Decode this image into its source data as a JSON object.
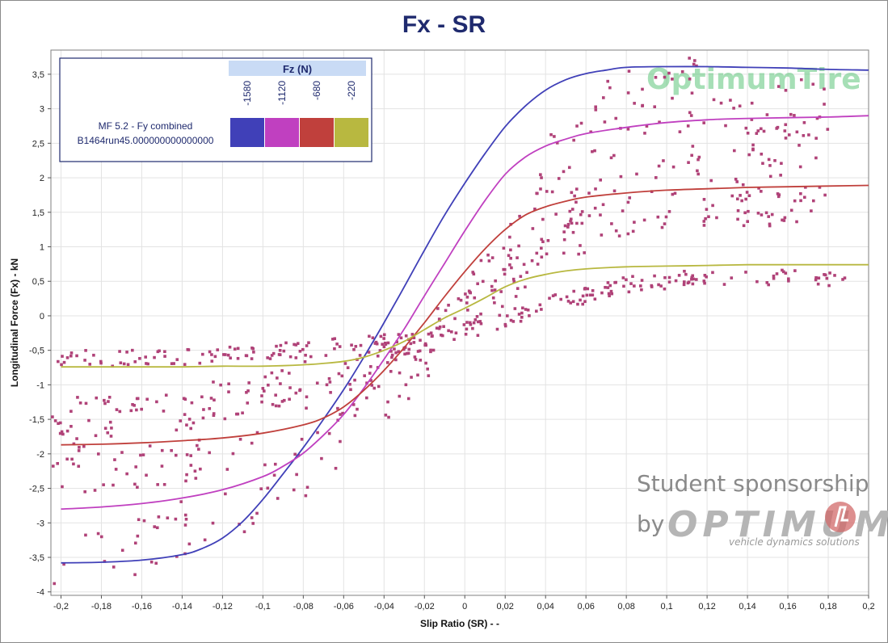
{
  "chart_data": {
    "type": "line",
    "title": "Fx - SR",
    "xlabel": "Slip Ratio (SR) - -",
    "ylabel": "Longitudinal Force (Fx) - kN",
    "xlim": [
      -0.205,
      0.2
    ],
    "ylim": [
      -4.05,
      3.85
    ],
    "x_ticks": [
      -0.2,
      -0.18,
      -0.16,
      -0.14,
      -0.12,
      -0.1,
      -0.08,
      -0.06,
      -0.04,
      -0.02,
      0,
      0.02,
      0.04,
      0.06,
      0.08,
      0.1,
      0.12,
      0.14,
      0.16,
      0.18,
      0.2
    ],
    "x_tick_labels": [
      "-0,2",
      "-0,18",
      "-0,16",
      "-0,14",
      "-0,12",
      "-0,1",
      "-0,08",
      "-0,06",
      "-0,04",
      "-0,02",
      "0",
      "0,02",
      "0,04",
      "0,06",
      "0,08",
      "0,1",
      "0,12",
      "0,14",
      "0,16",
      "0,18",
      "0,2"
    ],
    "y_ticks": [
      -4,
      -3.5,
      -3,
      -2.5,
      -2,
      -1.5,
      -1,
      -0.5,
      0,
      0.5,
      1,
      1.5,
      2,
      2.5,
      3,
      3.5
    ],
    "y_tick_labels": [
      "-4",
      "-3,5",
      "-3",
      "-2,5",
      "-2",
      "-1,5",
      "-1",
      "-0,5",
      "0",
      "0,5",
      "1",
      "1,5",
      "2",
      "2,5",
      "3",
      "3,5"
    ],
    "grid": true,
    "legend": {
      "placement": "top-left",
      "header": "Fz (N)",
      "row_label_1": "MF 5.2 - Fy combined",
      "row_label_2": "B1464run45.000000000000000"
    },
    "series": [
      {
        "name": "-1580",
        "color": "#4040b8",
        "x": [
          -0.2,
          -0.18,
          -0.16,
          -0.14,
          -0.13,
          -0.12,
          -0.11,
          -0.1,
          -0.09,
          -0.08,
          -0.07,
          -0.06,
          -0.05,
          -0.04,
          -0.03,
          -0.02,
          -0.01,
          0,
          0.01,
          0.02,
          0.03,
          0.04,
          0.05,
          0.06,
          0.07,
          0.08,
          0.1,
          0.12,
          0.14,
          0.16,
          0.18,
          0.2
        ],
        "y": [
          -3.58,
          -3.57,
          -3.54,
          -3.46,
          -3.37,
          -3.22,
          -2.98,
          -2.66,
          -2.29,
          -1.91,
          -1.5,
          -1.07,
          -0.6,
          -0.1,
          0.42,
          0.95,
          1.46,
          1.92,
          2.35,
          2.74,
          3.04,
          3.27,
          3.42,
          3.51,
          3.56,
          3.6,
          3.61,
          3.61,
          3.6,
          3.59,
          3.57,
          3.56
        ]
      },
      {
        "name": "-1120",
        "color": "#c040c0",
        "x": [
          -0.2,
          -0.18,
          -0.16,
          -0.14,
          -0.12,
          -0.1,
          -0.09,
          -0.08,
          -0.07,
          -0.06,
          -0.05,
          -0.04,
          -0.03,
          -0.02,
          -0.01,
          0,
          0.01,
          0.02,
          0.03,
          0.04,
          0.05,
          0.06,
          0.08,
          0.1,
          0.12,
          0.14,
          0.16,
          0.18,
          0.2
        ],
        "y": [
          -2.8,
          -2.77,
          -2.72,
          -2.64,
          -2.52,
          -2.33,
          -2.18,
          -1.99,
          -1.73,
          -1.43,
          -1.05,
          -0.63,
          -0.19,
          0.29,
          0.76,
          1.23,
          1.67,
          2.05,
          2.3,
          2.46,
          2.56,
          2.64,
          2.73,
          2.8,
          2.84,
          2.86,
          2.87,
          2.88,
          2.9
        ]
      },
      {
        "name": "-680",
        "color": "#c0403c",
        "x": [
          -0.2,
          -0.18,
          -0.16,
          -0.14,
          -0.12,
          -0.1,
          -0.08,
          -0.07,
          -0.06,
          -0.05,
          -0.04,
          -0.03,
          -0.02,
          -0.01,
          0,
          0.01,
          0.02,
          0.03,
          0.04,
          0.05,
          0.06,
          0.08,
          0.1,
          0.12,
          0.14,
          0.16,
          0.18,
          0.2
        ],
        "y": [
          -1.87,
          -1.86,
          -1.84,
          -1.81,
          -1.77,
          -1.7,
          -1.58,
          -1.48,
          -1.32,
          -1.08,
          -0.79,
          -0.46,
          -0.1,
          0.28,
          0.64,
          0.97,
          1.25,
          1.46,
          1.58,
          1.66,
          1.72,
          1.78,
          1.82,
          1.84,
          1.86,
          1.87,
          1.88,
          1.89
        ]
      },
      {
        "name": "-220",
        "color": "#b8b840",
        "x": [
          -0.2,
          -0.18,
          -0.16,
          -0.14,
          -0.12,
          -0.1,
          -0.08,
          -0.07,
          -0.06,
          -0.05,
          -0.04,
          -0.03,
          -0.02,
          -0.01,
          0,
          0.01,
          0.02,
          0.03,
          0.04,
          0.05,
          0.06,
          0.08,
          0.1,
          0.12,
          0.14,
          0.16,
          0.18,
          0.2
        ],
        "y": [
          -0.74,
          -0.74,
          -0.74,
          -0.74,
          -0.73,
          -0.73,
          -0.71,
          -0.69,
          -0.66,
          -0.6,
          -0.5,
          -0.37,
          -0.2,
          -0.03,
          0.11,
          0.26,
          0.42,
          0.53,
          0.6,
          0.65,
          0.68,
          0.71,
          0.72,
          0.73,
          0.74,
          0.74,
          0.74,
          0.74
        ]
      }
    ],
    "scatter": {
      "color": "#b04278",
      "bands": [
        {
          "x_from": -0.205,
          "x_to": 0.19,
          "y_center": [
            -0.62,
            -0.62,
            -0.58,
            -0.52,
            -0.44,
            -0.34,
            -0.15,
            0.2,
            0.46,
            0.55,
            0.55,
            0.55
          ],
          "spread": 0.12,
          "count": 240
        },
        {
          "x_from": -0.205,
          "x_to": 0.18,
          "y_center": [
            -1.45,
            -1.4,
            -1.3,
            -1.1,
            -0.85,
            -0.45,
            0.1,
            0.9,
            1.45,
            1.6,
            1.6,
            1.58
          ],
          "spread": 0.3,
          "count": 230
        },
        {
          "x_from": -0.205,
          "x_to": 0.18,
          "y_center": [
            -2.2,
            -2.1,
            -1.95,
            -1.6,
            -1.2,
            -0.6,
            0.3,
            1.5,
            2.2,
            2.35,
            2.4,
            2.4
          ],
          "spread": 0.45,
          "count": 200
        },
        {
          "x_from": -0.205,
          "x_to": 0.18,
          "y_center": [
            -3.45,
            -3.35,
            -3.1,
            -2.6,
            -1.9,
            -0.9,
            0.5,
            2.2,
            3.1,
            3.3,
            3.1,
            3.0
          ],
          "spread": 0.45,
          "count": 150
        }
      ]
    }
  },
  "watermarks": {
    "brand": "OptimumTire",
    "sponsor_line": "Student sponsorship",
    "by": "by",
    "company": "OPTIMUM",
    "tagline": "vehicle dynamics solutions"
  }
}
